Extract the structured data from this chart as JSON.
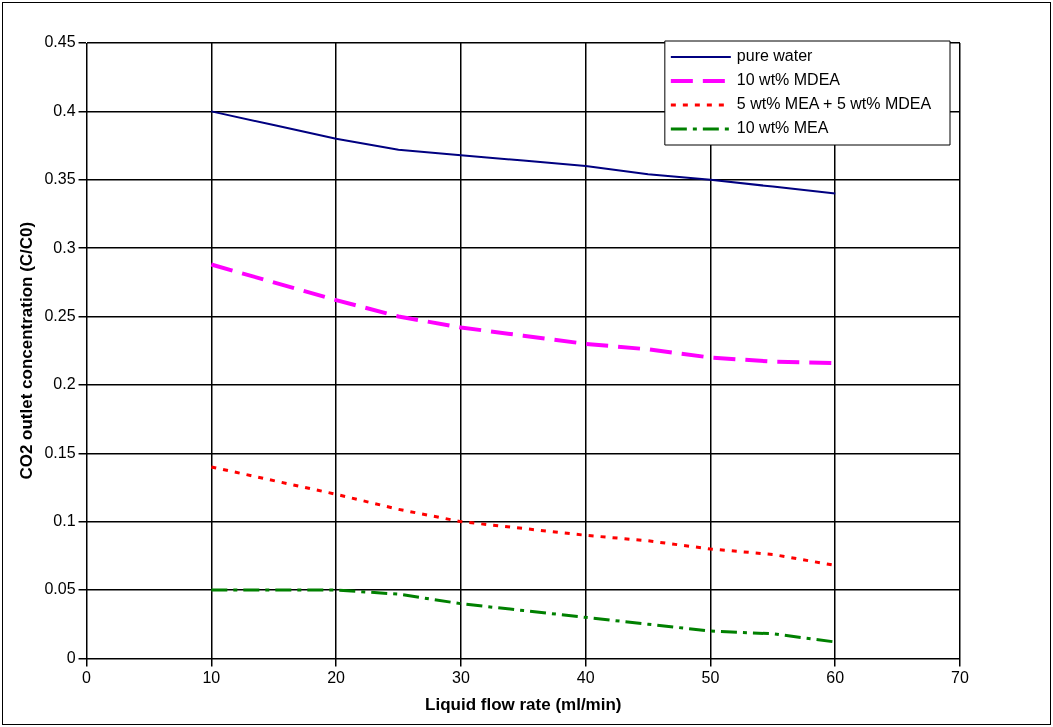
{
  "chart_data": {
    "type": "line",
    "xlabel": "Liquid flow rate (ml/min)",
    "ylabel": "CO2 outlet concentration (C/C0)",
    "x": [
      10,
      15,
      20,
      25,
      30,
      35,
      40,
      45,
      50,
      55,
      60
    ],
    "series": [
      {
        "name": "pure water",
        "color": "#000080",
        "line_style": "solid",
        "values": [
          0.4,
          0.39,
          0.38,
          0.372,
          0.368,
          0.364,
          0.36,
          0.354,
          0.35,
          0.345,
          0.34
        ]
      },
      {
        "name": "10 wt% MDEA",
        "color": "#ff00ff",
        "line_style": "dashed",
        "values": [
          0.288,
          0.275,
          0.262,
          0.25,
          0.242,
          0.236,
          0.23,
          0.226,
          0.22,
          0.217,
          0.216
        ]
      },
      {
        "name": "5 wt% MEA + 5 wt% MDEA",
        "color": "#ff0000",
        "line_style": "dotted",
        "values": [
          0.14,
          0.13,
          0.12,
          0.109,
          0.1,
          0.095,
          0.09,
          0.086,
          0.08,
          0.076,
          0.068
        ]
      },
      {
        "name": "10 wt% MEA",
        "color": "#008000",
        "line_style": "dashdot",
        "values": [
          0.05,
          0.05,
          0.05,
          0.047,
          0.04,
          0.035,
          0.03,
          0.025,
          0.02,
          0.018,
          0.012
        ]
      }
    ],
    "xlim": [
      0,
      70
    ],
    "xticks": [
      0,
      10,
      20,
      30,
      40,
      50,
      60,
      70
    ],
    "ylim": [
      0,
      0.45
    ],
    "yticks": [
      0,
      0.05,
      0.1,
      0.15,
      0.2,
      0.25,
      0.3,
      0.35,
      0.4,
      0.45
    ],
    "grid": true,
    "legend": "top right",
    "marker": "none"
  }
}
